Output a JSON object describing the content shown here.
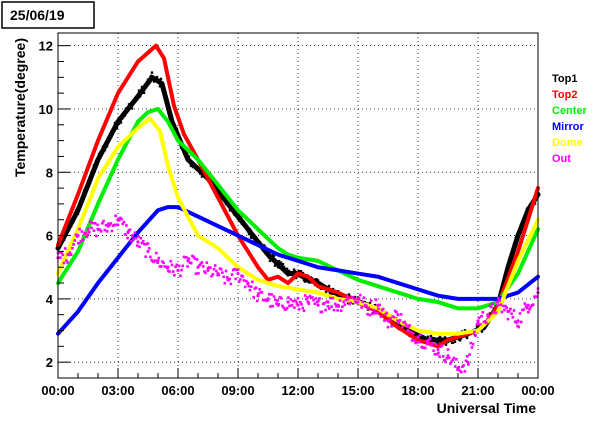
{
  "chart_data": {
    "type": "scatter",
    "title": "25/06/19",
    "xlabel": "Universal Time",
    "ylabel": "Temperature(degree)",
    "xlim": [
      0,
      24
    ],
    "ylim": [
      1.5,
      12.4
    ],
    "grid": true,
    "legend_position": "right",
    "x_ticks": [
      {
        "value": 0,
        "label": "00:00"
      },
      {
        "value": 3,
        "label": "03:00"
      },
      {
        "value": 6,
        "label": "06:00"
      },
      {
        "value": 9,
        "label": "09:00"
      },
      {
        "value": 12,
        "label": "12:00"
      },
      {
        "value": 15,
        "label": "15:00"
      },
      {
        "value": 18,
        "label": "18:00"
      },
      {
        "value": 21,
        "label": "21:00"
      },
      {
        "value": 24,
        "label": "00:00"
      }
    ],
    "y_ticks": [
      {
        "value": 2,
        "label": "2"
      },
      {
        "value": 4,
        "label": "4"
      },
      {
        "value": 6,
        "label": "6"
      },
      {
        "value": 8,
        "label": "8"
      },
      {
        "value": 10,
        "label": "10"
      },
      {
        "value": 12,
        "label": "12"
      }
    ],
    "series": [
      {
        "name": "Top1",
        "color": "#000000",
        "style": "band",
        "x": [
          0,
          1,
          2,
          3,
          4,
          4.7,
          5.2,
          5.7,
          6.5,
          7.5,
          9,
          10.5,
          11.5,
          12,
          12.5,
          13,
          13.5,
          14.5,
          15.5,
          16.5,
          17.5,
          18.5,
          19.5,
          20.5,
          21.3,
          22,
          22.5,
          23,
          23.5,
          24
        ],
        "y": [
          5.6,
          6.8,
          8.4,
          9.6,
          10.4,
          11.0,
          10.8,
          9.6,
          8.4,
          7.8,
          6.6,
          5.4,
          4.8,
          4.8,
          4.6,
          4.5,
          4.3,
          4.0,
          3.8,
          3.4,
          3.0,
          2.7,
          2.7,
          2.9,
          3.1,
          3.8,
          5.0,
          6.0,
          6.8,
          7.3
        ]
      },
      {
        "name": "Top2",
        "color": "#ff0000",
        "style": "line",
        "x": [
          0,
          1,
          2,
          3,
          4,
          4.9,
          5.3,
          5.8,
          6.3,
          7,
          8,
          9,
          10,
          10.5,
          11,
          11.5,
          12,
          12.5,
          13,
          14,
          15,
          16,
          17,
          18,
          19,
          19.5,
          20,
          20.5,
          21,
          21.5,
          22,
          23,
          24
        ],
        "y": [
          5.7,
          7.3,
          9.0,
          10.5,
          11.5,
          12.0,
          11.6,
          10.1,
          9.2,
          8.4,
          7.2,
          6.0,
          5.0,
          4.6,
          4.7,
          4.5,
          4.8,
          4.7,
          4.4,
          4.2,
          3.9,
          3.6,
          3.1,
          2.7,
          2.5,
          2.7,
          2.8,
          2.9,
          3.0,
          3.3,
          3.8,
          5.5,
          7.5
        ]
      },
      {
        "name": "Center",
        "color": "#00ee00",
        "style": "line",
        "x": [
          0,
          1,
          2,
          3,
          4,
          4.5,
          5,
          5.5,
          6,
          7,
          8,
          9,
          10,
          11,
          11.5,
          12,
          13,
          14,
          15,
          16,
          17,
          18,
          19,
          20,
          21,
          22,
          23,
          24
        ],
        "y": [
          4.5,
          5.5,
          7.0,
          8.4,
          9.6,
          9.9,
          10.0,
          9.6,
          9.0,
          8.4,
          7.6,
          6.8,
          6.2,
          5.6,
          5.4,
          5.3,
          5.2,
          4.9,
          4.6,
          4.4,
          4.2,
          4.0,
          3.9,
          3.7,
          3.7,
          3.9,
          4.8,
          6.2
        ]
      },
      {
        "name": "Mirror",
        "color": "#0000ff",
        "style": "line",
        "x": [
          0,
          1,
          2,
          3,
          4,
          5,
          5.5,
          6,
          7,
          8,
          9,
          10,
          11,
          12,
          13,
          14,
          15,
          16,
          17,
          18,
          19,
          20,
          21,
          22,
          23,
          24
        ],
        "y": [
          2.9,
          3.6,
          4.5,
          5.3,
          6.1,
          6.8,
          6.9,
          6.9,
          6.6,
          6.3,
          6.0,
          5.7,
          5.4,
          5.2,
          5.0,
          4.9,
          4.8,
          4.7,
          4.5,
          4.3,
          4.1,
          4.0,
          4.0,
          4.0,
          4.2,
          4.7
        ]
      },
      {
        "name": "Dome",
        "color": "#ffff00",
        "style": "line",
        "x": [
          0,
          1,
          2,
          3,
          4,
          4.6,
          5.1,
          5.5,
          6,
          6.5,
          7,
          8,
          9,
          10,
          11,
          12,
          13,
          14,
          15,
          16,
          17,
          18,
          19,
          20,
          21,
          22,
          23,
          24
        ],
        "y": [
          4.8,
          6.2,
          7.8,
          8.8,
          9.4,
          9.7,
          9.3,
          8.2,
          7.2,
          6.6,
          6.0,
          5.6,
          5.0,
          4.6,
          4.4,
          4.3,
          4.2,
          4.0,
          3.9,
          3.7,
          3.3,
          3.0,
          2.9,
          2.9,
          3.0,
          3.6,
          5.2,
          6.5
        ]
      },
      {
        "name": "Out",
        "color": "#ff00ff",
        "style": "scatter",
        "x": [
          0,
          0.5,
          1,
          1.5,
          2,
          2.5,
          3,
          3.5,
          4,
          4.5,
          5,
          5.5,
          6,
          6.5,
          7,
          7.5,
          8,
          8.5,
          9,
          9.5,
          10,
          10.5,
          11,
          11.5,
          12,
          12.5,
          13,
          13.5,
          14,
          14.5,
          15,
          15.5,
          16,
          16.5,
          17,
          17.5,
          18,
          18.5,
          19,
          19.5,
          20,
          20.5,
          21,
          21.5,
          22,
          22.5,
          23,
          23.5,
          24
        ],
        "y": [
          5.3,
          5.4,
          6.0,
          6.2,
          6.2,
          6.3,
          6.5,
          6.1,
          5.8,
          5.5,
          5.2,
          5.0,
          4.9,
          5.2,
          5.0,
          4.9,
          4.8,
          4.6,
          4.8,
          4.5,
          4.1,
          4.0,
          3.8,
          3.9,
          3.8,
          3.9,
          3.8,
          3.9,
          3.8,
          4.0,
          4.0,
          3.7,
          3.8,
          3.3,
          3.5,
          3.0,
          2.8,
          2.6,
          2.4,
          2.2,
          1.8,
          2.0,
          3.3,
          3.5,
          3.8,
          3.6,
          3.3,
          3.8,
          4.2
        ]
      }
    ]
  }
}
